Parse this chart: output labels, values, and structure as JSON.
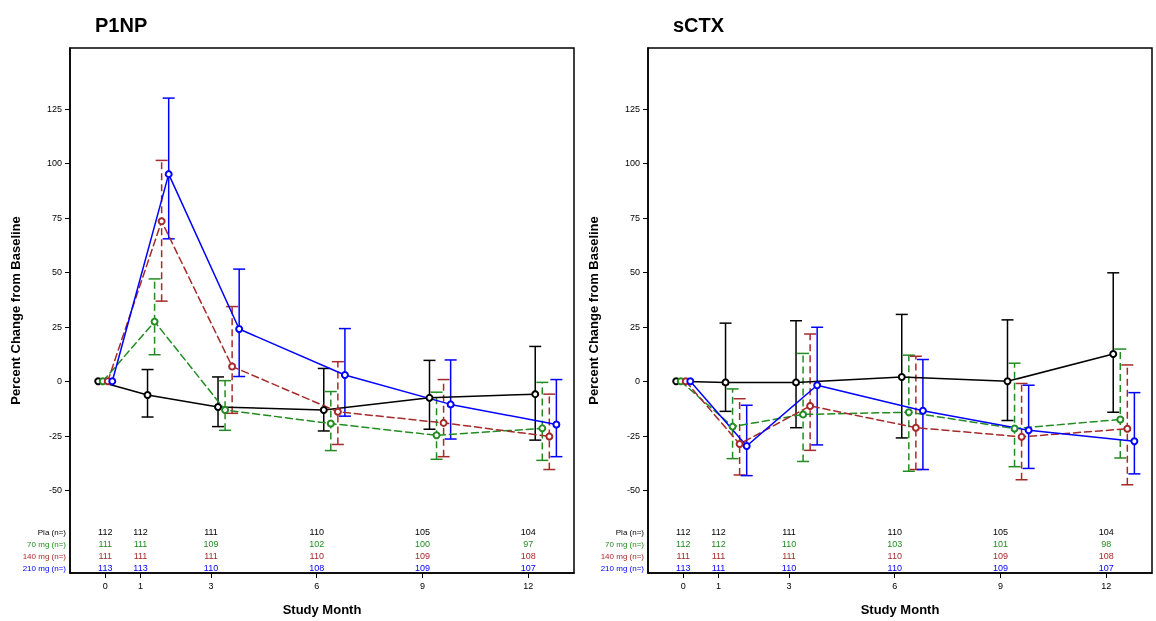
{
  "chart_data": [
    {
      "type": "line",
      "title": "P1NP",
      "xlabel": "Study Month",
      "ylabel": "Percent Change from Baseline",
      "xlim": [
        -1,
        13.3
      ],
      "xticks": [
        0,
        1,
        3,
        6,
        9,
        12
      ],
      "ylim": [
        -88,
        153
      ],
      "yticks": [
        -50,
        -25,
        0,
        25,
        50,
        75,
        100,
        125
      ],
      "grid": false,
      "series": [
        {
          "color": "#000000",
          "line_style": "solid",
          "marker": "circle",
          "x": [
            -0.2,
            1.2,
            3.2,
            6.2,
            9.2,
            12.2
          ],
          "values": [
            0,
            -6.3,
            -11.8,
            -13.2,
            -7.6,
            -5.9
          ],
          "errors": [
            null,
            [
              -16.4,
              5.4
            ],
            [
              -20.8,
              2
            ],
            [
              -22.8,
              5.9
            ],
            [
              -22,
              9.6
            ],
            [
              -27,
              16
            ]
          ]
        },
        {
          "color": "#228b22",
          "line_style": "dashed",
          "marker": "circle",
          "x": [
            -0.07,
            1.4,
            3.4,
            6.4,
            9.4,
            12.4
          ],
          "values": [
            0,
            27.4,
            -13.2,
            -19.4,
            -24.8,
            -21.6
          ],
          "errors": [
            null,
            [
              12.2,
              47
            ],
            [
              -22.5,
              0.3
            ],
            [
              -31.8,
              -4.7
            ],
            [
              -35.8,
              -5
            ],
            [
              -36.3,
              -0.5
            ]
          ]
        },
        {
          "color": "#a52a2a",
          "line_style": "dashed",
          "marker": "circle",
          "x": [
            0.07,
            1.6,
            3.6,
            6.6,
            9.6,
            12.6
          ],
          "values": [
            0,
            73.5,
            6.8,
            -14,
            -19.1,
            -25.3
          ],
          "errors": [
            null,
            [
              36.8,
              101.4
            ],
            [
              -14.7,
              34.3
            ],
            [
              -29,
              9
            ],
            [
              -34.6,
              0.8
            ],
            [
              -40.5,
              -5.9
            ]
          ]
        },
        {
          "color": "#0000ff",
          "line_style": "solid",
          "marker": "circle",
          "x": [
            0.2,
            1.8,
            3.8,
            6.8,
            9.8,
            12.8
          ],
          "values": [
            0,
            95.1,
            24,
            2.9,
            -10.6,
            -19.8
          ],
          "errors": [
            null,
            [
              65.4,
              130
            ],
            [
              2.2,
              51.5
            ],
            [
              -16,
              24.2
            ],
            [
              -26.5,
              9.8
            ],
            [
              -34.6,
              0.8
            ]
          ]
        }
      ],
      "annotations": [
        "Pla (n=)",
        "112",
        "112",
        "111",
        "110",
        "105",
        "104",
        "70 mg (n=)",
        "111",
        "111",
        "109",
        "102",
        "100",
        "97",
        "140 mg (n=)",
        "111",
        "111",
        "111",
        "110",
        "109",
        "108",
        "210 mg (n=)",
        "113",
        "113",
        "110",
        "108",
        "109",
        "107"
      ]
    },
    {
      "type": "line",
      "title": "sCTX",
      "xlabel": "Study Month",
      "ylabel": "Percent Change from Baseline",
      "xlim": [
        -1,
        13.3
      ],
      "xticks": [
        0,
        1,
        3,
        6,
        9,
        12
      ],
      "ylim": [
        -88,
        153
      ],
      "yticks": [
        -50,
        -25,
        0,
        25,
        50,
        75,
        100,
        125
      ],
      "grid": false,
      "series": [
        {
          "color": "#000000",
          "line_style": "solid",
          "marker": "circle",
          "x": [
            -0.2,
            1.2,
            3.2,
            6.2,
            9.2,
            12.2
          ],
          "values": [
            0,
            -0.5,
            -0.5,
            2,
            0,
            12.5
          ],
          "errors": [
            null,
            [
              -13.8,
              26.7
            ],
            [
              -21.3,
              27.8
            ],
            [
              -26,
              30.7
            ],
            [
              -18,
              28.2
            ],
            [
              -14.2,
              49.8
            ]
          ]
        },
        {
          "color": "#228b22",
          "line_style": "dashed",
          "marker": "circle",
          "x": [
            -0.07,
            1.4,
            3.4,
            6.4,
            9.4,
            12.4
          ],
          "values": [
            0,
            -20.8,
            -15.2,
            -14.2,
            -21.7,
            -17.5
          ],
          "errors": [
            null,
            [
              -35.5,
              -3.5
            ],
            [
              -36.8,
              12.8
            ],
            [
              -41.3,
              12
            ],
            [
              -39.2,
              8.3
            ],
            [
              -35.2,
              14.8
            ]
          ]
        },
        {
          "color": "#a52a2a",
          "line_style": "dashed",
          "marker": "circle",
          "x": [
            0.07,
            1.6,
            3.6,
            6.6,
            9.6,
            12.6
          ],
          "values": [
            0,
            -28.8,
            -11.3,
            -21.3,
            -25.5,
            -21.8
          ],
          "errors": [
            null,
            [
              -43,
              -8
            ],
            [
              -31.7,
              21.7
            ],
            [
              -40.5,
              11.5
            ],
            [
              -45.2,
              -1
            ],
            [
              -47.5,
              7.5
            ]
          ]
        },
        {
          "color": "#0000ff",
          "line_style": "solid",
          "marker": "circle",
          "x": [
            0.2,
            1.8,
            3.8,
            6.8,
            9.8,
            12.8
          ],
          "values": [
            0,
            -29.7,
            -1.8,
            -13.5,
            -22.5,
            -27.5
          ],
          "errors": [
            null,
            [
              -43.3,
              -11
            ],
            [
              -29.2,
              24.8
            ],
            [
              -40.5,
              10
            ],
            [
              -40,
              -1.8
            ],
            [
              -42.5,
              -5.2
            ]
          ]
        }
      ],
      "annotations": [
        "Pla (n=)",
        "112",
        "112",
        "111",
        "110",
        "105",
        "104",
        "70 mg (n=)",
        "112",
        "112",
        "110",
        "103",
        "101",
        "98",
        "140 mg (n=)",
        "111",
        "111",
        "111",
        "110",
        "109",
        "108",
        "210 mg (n=)",
        "113",
        "111",
        "110",
        "110",
        "109",
        "107"
      ]
    }
  ]
}
